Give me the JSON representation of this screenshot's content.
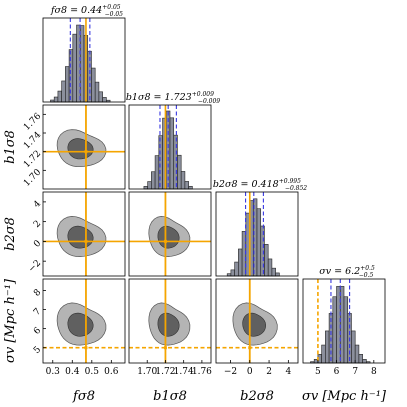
{
  "chart_data": {
    "type": "corner",
    "params": [
      {
        "name": "fσ8",
        "title": "fσ8 = 0.44",
        "title_sup": "+0.05",
        "title_sub": "−0.05",
        "median": 0.44,
        "lo": 0.39,
        "hi": 0.49,
        "truth": 0.47,
        "sigma": 0.05,
        "range": [
          0.25,
          0.67
        ],
        "ticks": [
          "0.3",
          "0.4",
          "0.5",
          "0.6"
        ],
        "tick_values": [
          0.3,
          0.4,
          0.5,
          0.6
        ]
      },
      {
        "name": "b1σ8",
        "title": "b1σ8 = 1.723",
        "title_sup": "+0.009",
        "title_sub": "−0.009",
        "median": 1.723,
        "lo": 1.714,
        "hi": 1.732,
        "truth": 1.72,
        "sigma": 0.009,
        "range": [
          1.68,
          1.77
        ],
        "ticks": [
          "1.70",
          "1.72",
          "1.74",
          "1.76"
        ],
        "tick_values": [
          1.7,
          1.72,
          1.74,
          1.76
        ]
      },
      {
        "name": "b2σ8",
        "title": "b2σ8 = 0.418",
        "title_sup": "+0.995",
        "title_sub": "−0.852",
        "median": 0.418,
        "lo": -0.434,
        "hi": 1.413,
        "truth": 0.0,
        "sigma": 0.92,
        "range": [
          -3.5,
          5
        ],
        "ticks": [
          "−2",
          "0",
          "2",
          "4"
        ],
        "tick_values": [
          -2,
          0,
          2,
          4
        ]
      },
      {
        "name": "σv [Mpc h⁻¹]",
        "title": "σv = 6.2",
        "title_sup": "+0.5",
        "title_sub": "−0.5",
        "median": 6.2,
        "lo": 5.7,
        "hi": 6.7,
        "truth": 5.0,
        "sigma": 0.5,
        "range": [
          4.2,
          8.6
        ],
        "ticks": [
          "5",
          "6",
          "7",
          "8"
        ],
        "tick_values": [
          5,
          6,
          7,
          8
        ]
      }
    ],
    "x_labels": [
      "fσ8",
      "b1σ8",
      "b2σ8",
      "σv [Mpc h⁻¹]"
    ],
    "y_labels": [
      "b1σ8",
      "b2σ8",
      "σv [Mpc h⁻¹]"
    ],
    "colors": {
      "hist_fill": "#8b8f9c",
      "hist_edge": "#222222",
      "quantile": "#3838e0",
      "truth": "#f5a500",
      "contour_inner": "#606060",
      "contour_outer": "#b4b4b4"
    }
  }
}
